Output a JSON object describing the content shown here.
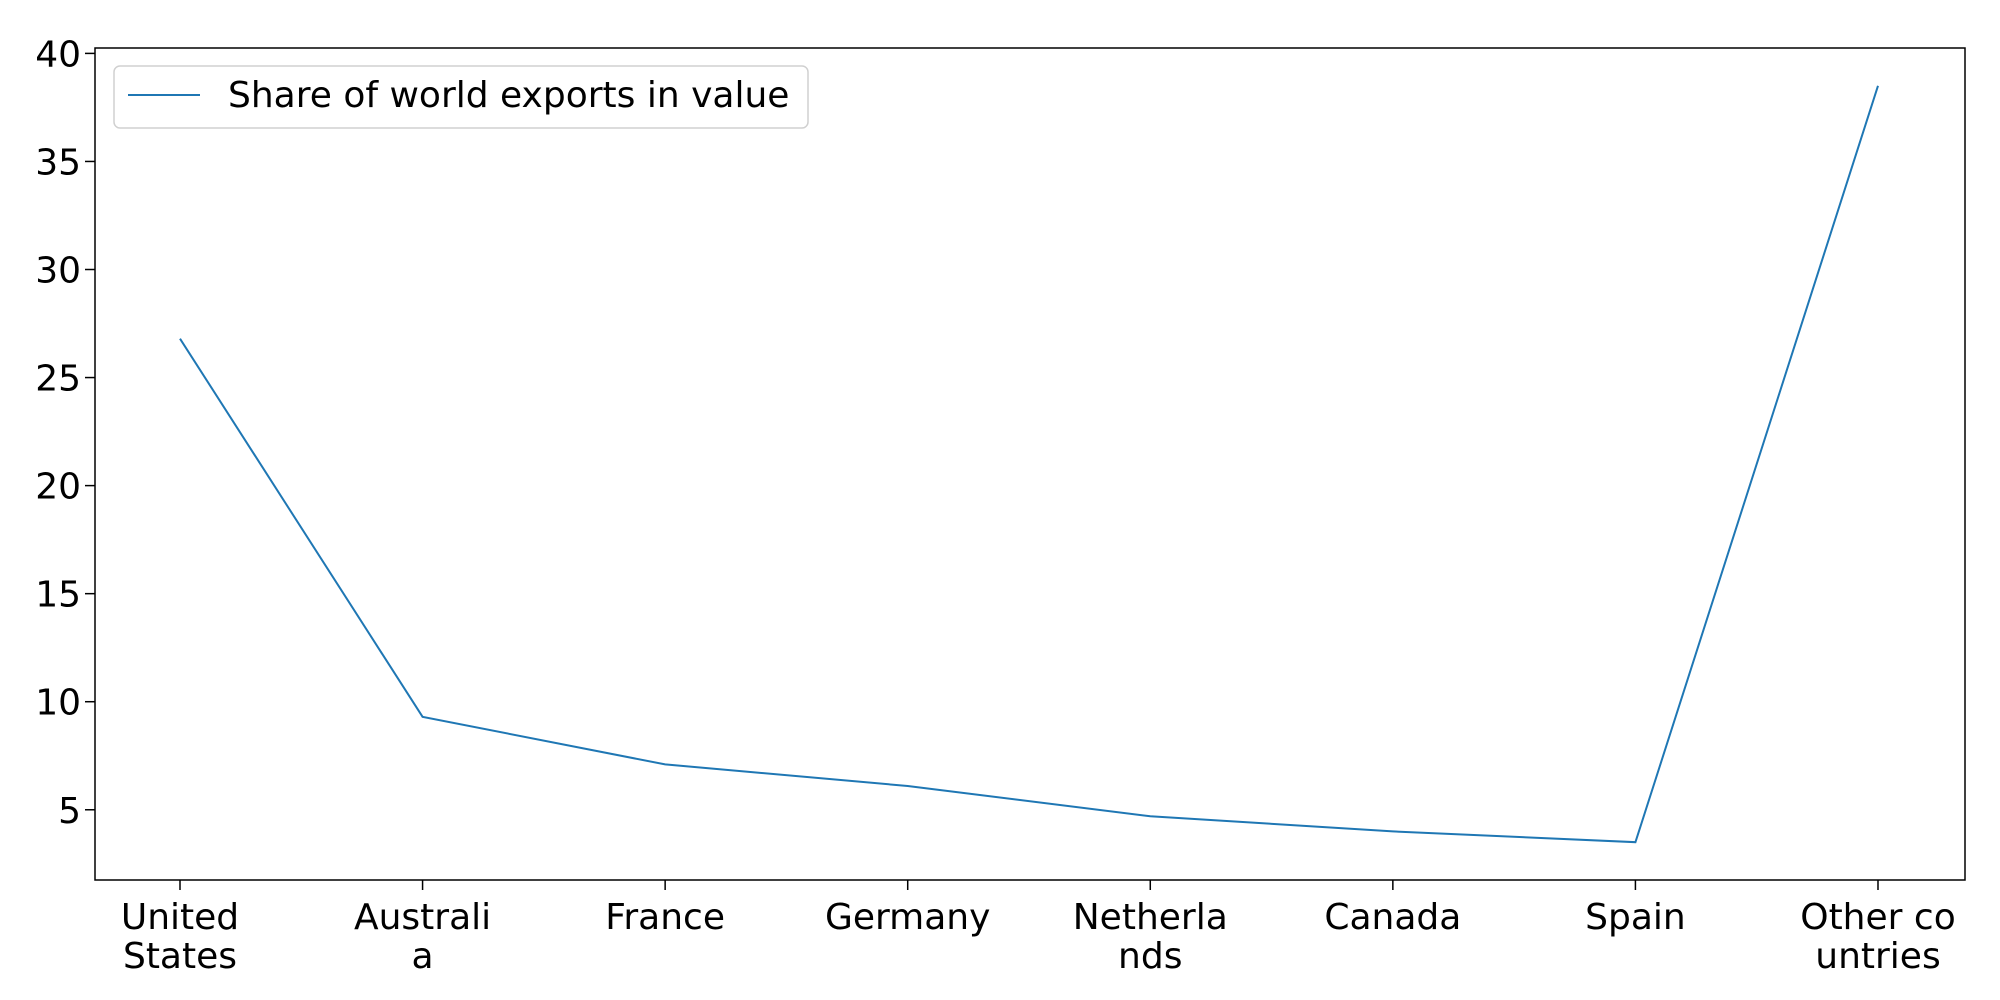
{
  "chart_data": {
    "type": "line",
    "title": "",
    "xlabel": "",
    "ylabel": "",
    "categories": [
      [
        "United",
        "States"
      ],
      [
        "Australi",
        "a"
      ],
      [
        "France"
      ],
      [
        "Germany"
      ],
      [
        "Netherla",
        "nds"
      ],
      [
        "Canada"
      ],
      [
        "Spain"
      ],
      [
        "Other co",
        "untries"
      ]
    ],
    "series": [
      {
        "name": "Share of world exports in value",
        "values": [
          26.8,
          9.3,
          7.1,
          6.1,
          4.7,
          4.0,
          3.5,
          38.5
        ],
        "color": "#1f77b4"
      }
    ],
    "yticks": [
      5,
      10,
      15,
      20,
      25,
      30,
      35,
      40
    ],
    "ylim": [
      1.75,
      40.25
    ],
    "grid": false,
    "legend": {
      "placement": "upper-left"
    }
  }
}
